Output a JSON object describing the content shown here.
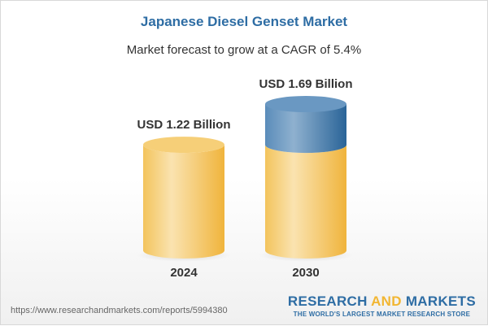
{
  "title": "Japanese Diesel Genset Market",
  "subtitle": "Market forecast to grow at a CAGR of 5.4%",
  "footer": {
    "url": "https://www.researchandmarkets.com/reports/5994380",
    "logo_part1": "RESEARCH ",
    "logo_part2": "AND",
    "logo_part3": " MARKETS",
    "tagline": "THE WORLD'S LARGEST MARKET RESEARCH STORE"
  },
  "colors": {
    "base": "#f2bc4a",
    "growth": "#3f77a8",
    "title": "#2e6da4"
  },
  "chart_data": {
    "type": "bar",
    "style": "3d-cylinder",
    "categories": [
      "2024",
      "2030"
    ],
    "values": [
      1.22,
      1.69
    ],
    "data_labels": [
      "USD 1.22 Billion",
      "USD 1.69 Billion"
    ],
    "unit": "USD Billion",
    "cagr": "5.4%"
  }
}
